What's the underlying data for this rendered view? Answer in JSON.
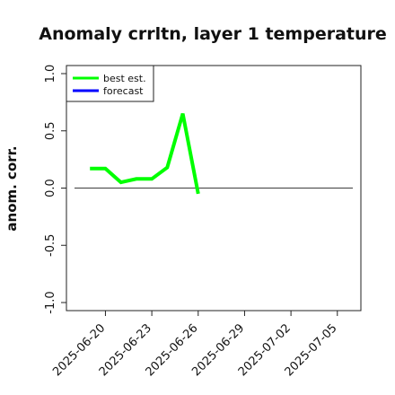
{
  "chart_data": {
    "type": "line",
    "title": "Anomaly crrltn, layer 1 temperature",
    "xlabel": "",
    "ylabel": "anom. corr.",
    "ylim": [
      -1.0,
      1.0
    ],
    "yticks": [
      -1.0,
      -0.5,
      0.0,
      0.5,
      1.0
    ],
    "ytick_labels": [
      "-1.0",
      "-0.5",
      "0.0",
      "0.5",
      "1.0"
    ],
    "xlim": [
      "2025-06-18",
      "2025-07-06"
    ],
    "xticks": [
      "2025-06-20",
      "2025-06-23",
      "2025-06-26",
      "2025-06-29",
      "2025-07-02",
      "2025-07-05"
    ],
    "highlighted_xtick": "2025-06-26",
    "highlight_color": "#228B22",
    "zero_line": {
      "from": "2025-06-18",
      "to": "2025-07-06",
      "y": 0.0,
      "color": "#555555"
    },
    "grid": false,
    "legend_position": "top-left",
    "series": [
      {
        "name": "best est.",
        "color": "#00ff00",
        "x": [
          "2025-06-19",
          "2025-06-20",
          "2025-06-21",
          "2025-06-22",
          "2025-06-23",
          "2025-06-24",
          "2025-06-25",
          "2025-06-26"
        ],
        "y": [
          0.17,
          0.17,
          0.05,
          0.08,
          0.08,
          0.18,
          0.65,
          -0.05
        ]
      },
      {
        "name": "forecast",
        "color": "#0000ff",
        "x": [],
        "y": []
      }
    ]
  }
}
